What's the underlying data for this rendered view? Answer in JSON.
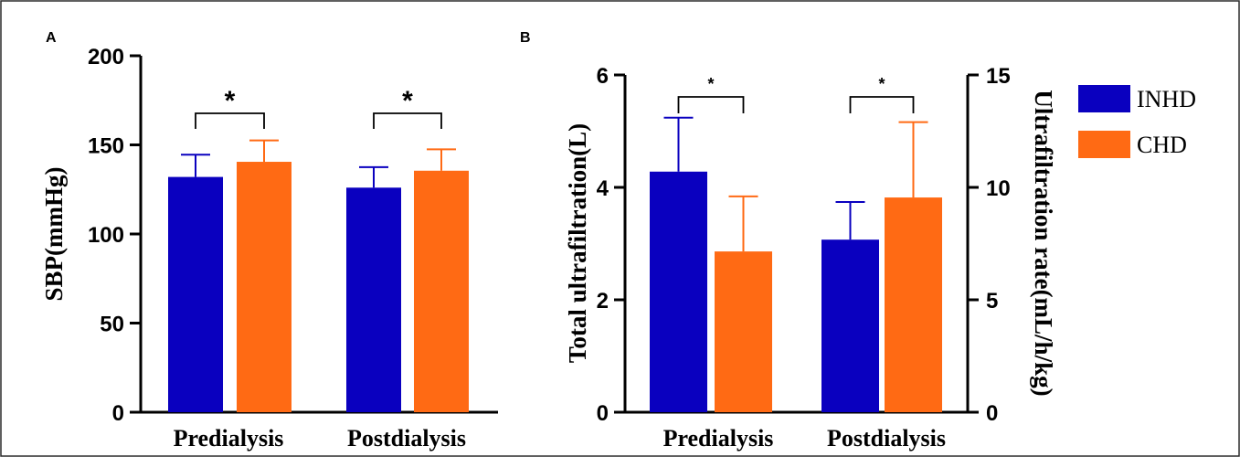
{
  "colors": {
    "INHD": "#0a00bf",
    "CHD": "#ff6a14"
  },
  "legend": [
    {
      "name": "INHD",
      "color": "#0a00bf"
    },
    {
      "name": "CHD",
      "color": "#ff6a14"
    }
  ],
  "chart_data": [
    {
      "panel": "A",
      "type": "bar",
      "categories": [
        "Predialysis",
        "Postdialysis"
      ],
      "series": [
        {
          "name": "INHD",
          "values": [
            132,
            126
          ],
          "errors": [
            12.5,
            11.5
          ]
        },
        {
          "name": "CHD",
          "values": [
            140.5,
            135.5
          ],
          "errors": [
            12,
            12
          ]
        }
      ],
      "ylabel": "SBP(mmHg)",
      "ylim": [
        0,
        200
      ],
      "yticks": [
        0,
        50,
        100,
        150,
        200
      ],
      "significance": [
        "*",
        "*"
      ],
      "grid": false
    },
    {
      "panel": "B",
      "type": "bar",
      "categories": [
        "Predialysis",
        "Postdialysis"
      ],
      "series": [
        {
          "name": "INHD",
          "axis": "left",
          "values": [
            4.28,
            3.07
          ],
          "errors": [
            0.96,
            0.67
          ]
        },
        {
          "name": "CHD",
          "axis": "right",
          "values": [
            7.15,
            9.55
          ],
          "errors": [
            2.45,
            3.35
          ]
        }
      ],
      "ylabel": "Total ultrafiltration(L)",
      "ylim": [
        0,
        6
      ],
      "yticks": [
        0,
        2,
        4,
        6
      ],
      "y2label": "Ultrafiltration rate(mL/h/kg)",
      "y2lim": [
        0,
        15
      ],
      "y2ticks": [
        0,
        5,
        10,
        15
      ],
      "significance": [
        "*",
        "*"
      ],
      "legend_position": "right",
      "grid": false
    }
  ]
}
